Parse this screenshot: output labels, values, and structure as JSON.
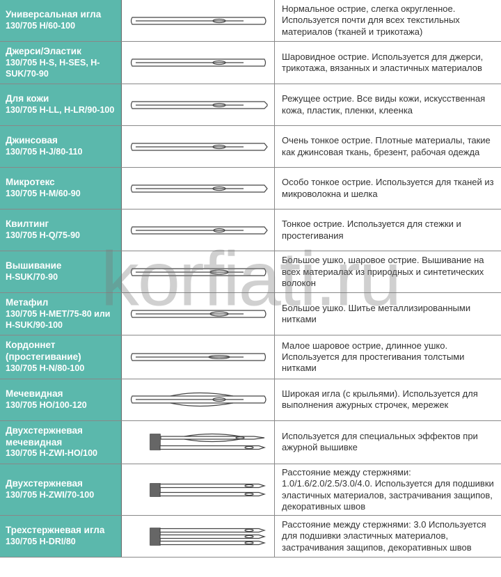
{
  "watermark": "korfiati.ru",
  "colors": {
    "label_bg": "#5bb8ac",
    "label_text": "#ffffff",
    "desc_text": "#333333",
    "border": "#888888",
    "shank": "#666666",
    "needle_stroke": "#444444"
  },
  "rows": [
    {
      "title": "Универсальная игла",
      "spec": "130/705 H/60-100",
      "desc": "Нормальное острие, слегка округленное. Используется почти для всех текстильных материалов (тканей и трикотажа)",
      "needle_type": "single_normal"
    },
    {
      "title": "Джерси/Эластик",
      "spec": "130/705 H-S, H-SES, H-SUK/70-90",
      "desc": "Шаровидное острие. Используется для джерси, трикотажа, вязанных и эластичных материалов",
      "needle_type": "single_ball"
    },
    {
      "title": "Для кожи",
      "spec": "130/705 H-LL, H-LR/90-100",
      "desc": "Режущее острие. Все виды кожи, искусственная кожа, пластик, пленки, клеенка",
      "needle_type": "single_cutting"
    },
    {
      "title": "Джинсовая",
      "spec": "130/705 H-J/80-110",
      "desc": "Очень тонкое острие. Плотные материалы, такие как джинсовая ткань, брезент, рабочая одежда",
      "needle_type": "single_sharp"
    },
    {
      "title": "Микротекс",
      "spec": "130/705 H-M/60-90",
      "desc": "Особо тонкое острие. Используется для тканей из микроволокна и шелка",
      "needle_type": "single_micro"
    },
    {
      "title": "Квилтинг",
      "spec": "130/705 H-Q/75-90",
      "desc": "Тонкое острие. Используется для стежки и простегивания",
      "needle_type": "single_quilt"
    },
    {
      "title": "Вышивание",
      "spec": "H-SUK/70-90",
      "desc": "Большое ушко, шаровое острие. Вышивание на всех материалах из природных и синтетических волокон",
      "needle_type": "single_bigeye"
    },
    {
      "title": "Метафил",
      "spec": "130/705 H-MET/75-80 или H-SUK/90-100",
      "desc": "Большое ушко. Шитье металлизированными нитками",
      "needle_type": "single_bigeye"
    },
    {
      "title": "Кордоннет (простегивание)",
      "spec": "130/705 H-N/80-100",
      "desc": "Малое шаровое острие, длинное ушко. Используется для простегивания толстыми нитками",
      "needle_type": "single_longeye"
    },
    {
      "title": "Мечевидная",
      "spec": "130/705 HO/100-120",
      "desc": "Широкая игла (с крыльями). Используется для выполнения ажурных строчек, мережек",
      "needle_type": "single_wing"
    },
    {
      "title": "Двухстержневая мечевидная",
      "spec": "130/705 H-ZWI-HO/100",
      "desc": "Используется для специальных эффектов при ажурной вышивке",
      "needle_type": "double_wing"
    },
    {
      "title": "Двухстержневая",
      "spec": "130/705 H-ZWI/70-100",
      "desc": "Расстояние между стержнями: 1.0/1.6/2.0/2.5/3.0/4.0. Используется для подшивки эластичных материалов, застрачивания защипов, декоративных швов",
      "needle_type": "double"
    },
    {
      "title": "Трехстержневая игла",
      "spec": "130/705 H-DRI/80",
      "desc": "Расстояние между стержнями: 3.0 Используется для подшивки эластичных материалов, застрачивания защипов, декоративных швов",
      "needle_type": "triple"
    }
  ]
}
